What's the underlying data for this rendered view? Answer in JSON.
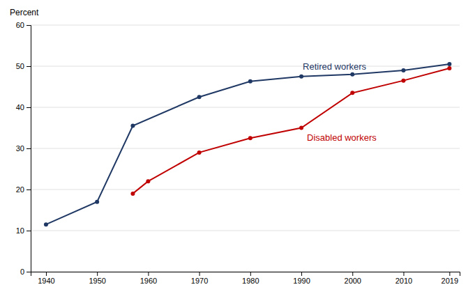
{
  "chart_data": {
    "type": "line",
    "y_label": "Percent",
    "series": [
      {
        "name": "Retired workers",
        "color": "#1f3864",
        "marker": "circle",
        "x": [
          1940,
          1950,
          1957,
          1970,
          1980,
          1990,
          2000,
          2010,
          2019
        ],
        "values": [
          11.5,
          17.0,
          35.5,
          42.5,
          46.3,
          47.5,
          48.0,
          49.0,
          50.5
        ]
      },
      {
        "name": "Disabled workers",
        "color": "#c00000",
        "marker": "circle",
        "x": [
          1957,
          1960,
          1970,
          1980,
          1990,
          2000,
          2010,
          2019
        ],
        "values": [
          19.0,
          22.0,
          29.0,
          32.5,
          35.0,
          43.5,
          46.5,
          49.5
        ]
      }
    ],
    "xlim": [
      1937,
      2021
    ],
    "xticks": [
      1940,
      1950,
      1960,
      1970,
      1980,
      1990,
      2000,
      2010,
      2019
    ],
    "ylim": [
      0,
      60
    ],
    "yticks": [
      0,
      10,
      20,
      30,
      40,
      50,
      60
    ],
    "grid": true
  }
}
